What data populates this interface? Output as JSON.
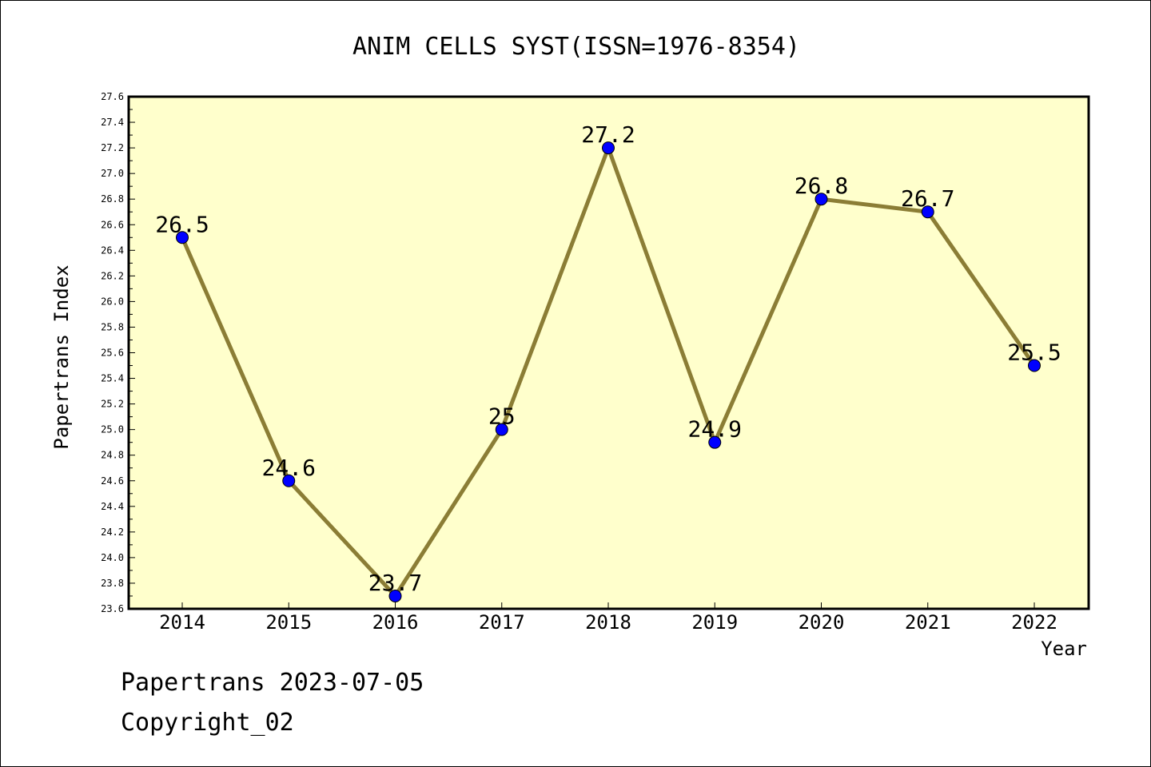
{
  "chart_data": {
    "type": "line",
    "title": "ANIM CELLS SYST(ISSN=1976-8354)",
    "xlabel": "Year",
    "ylabel": "Papertrans Index",
    "categories": [
      "2014",
      "2015",
      "2016",
      "2017",
      "2018",
      "2019",
      "2020",
      "2021",
      "2022"
    ],
    "series": [
      {
        "values": [
          26.5,
          24.6,
          23.7,
          25.0,
          27.2,
          24.9,
          26.8,
          26.7,
          25.5
        ],
        "labels": [
          "26.5",
          "24.6",
          "23.7",
          "25",
          "27.2",
          "24.9",
          "26.8",
          "26.7",
          "25.5"
        ]
      }
    ],
    "ylim": [
      23.6,
      27.6
    ],
    "ytick_labels": [
      "23.6",
      "23.8",
      "24.0",
      "24.2",
      "24.4",
      "24.6",
      "24.8",
      "25.0",
      "25.2",
      "25.4",
      "25.6",
      "25.8",
      "26.0",
      "26.2",
      "26.4",
      "26.6",
      "26.8",
      "27.0",
      "27.2",
      "27.4",
      "27.6"
    ],
    "grid": false,
    "legend": "none",
    "colors": {
      "plot_background": "#ffffcc",
      "line": "#8b7d35",
      "marker": "#0000ff"
    }
  },
  "footer": {
    "line1": "Papertrans 2023-07-05",
    "line2": "Copyright_02"
  }
}
